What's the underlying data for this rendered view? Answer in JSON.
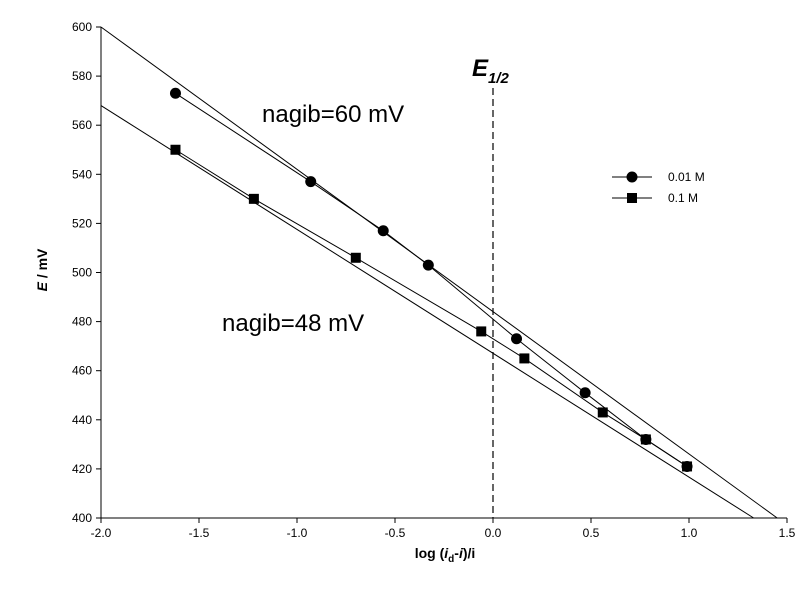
{
  "chart_data": {
    "type": "scatter",
    "xlabel_parts": [
      "log (",
      "i",
      "d",
      "-",
      "i",
      ")/i"
    ],
    "ylabel_parts": [
      "E",
      " / mV"
    ],
    "xlim": [
      -2.0,
      1.5
    ],
    "ylim": [
      400,
      600
    ],
    "x_ticks": [
      -2.0,
      -1.5,
      -1.0,
      -0.5,
      0.0,
      0.5,
      1.0,
      1.5
    ],
    "x_tick_labels": [
      "-2.0",
      "-1.5",
      "-1.0",
      "-0.5",
      "0.0",
      "0.5",
      "1.0",
      "1.5"
    ],
    "y_ticks": [
      400,
      420,
      440,
      460,
      480,
      500,
      520,
      540,
      560,
      580,
      600
    ],
    "y_tick_labels": [
      "400",
      "420",
      "440",
      "460",
      "480",
      "500",
      "520",
      "540",
      "560",
      "580",
      "600"
    ],
    "grid": false,
    "legend_placement": "right",
    "series": [
      {
        "name": "0.01 M",
        "marker": "circle",
        "color": "#000000",
        "x": [
          -1.62,
          -0.93,
          -0.56,
          -0.33,
          0.12,
          0.47,
          0.78,
          0.99
        ],
        "y": [
          573,
          537,
          517,
          503,
          473,
          451,
          432,
          421
        ],
        "fit": {
          "x": [
            -2.0,
            1.45
          ],
          "y": [
            600,
            400
          ]
        }
      },
      {
        "name": "0.1 M",
        "marker": "square",
        "color": "#000000",
        "x": [
          -1.62,
          -1.22,
          -0.7,
          -0.06,
          0.16,
          0.56,
          0.78,
          0.99
        ],
        "y": [
          550,
          530,
          506,
          476,
          465,
          443,
          432,
          421
        ],
        "fit": {
          "x": [
            -2.0,
            1.33
          ],
          "y": [
            568,
            400
          ]
        }
      }
    ],
    "annotations": [
      {
        "text": "nagib=60 mV"
      },
      {
        "text": "nagib=48 mV"
      }
    ],
    "e_half": {
      "label_main": "E",
      "label_sub": "1/2",
      "x": 0.0
    }
  }
}
